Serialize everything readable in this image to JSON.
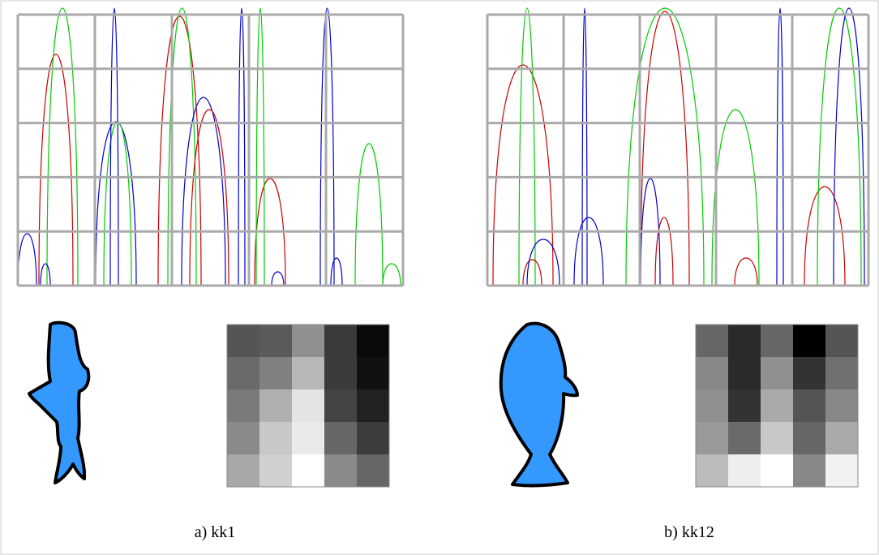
{
  "panels": [
    {
      "caption": "a) kk1"
    },
    {
      "caption": "b) kk12"
    }
  ]
}
